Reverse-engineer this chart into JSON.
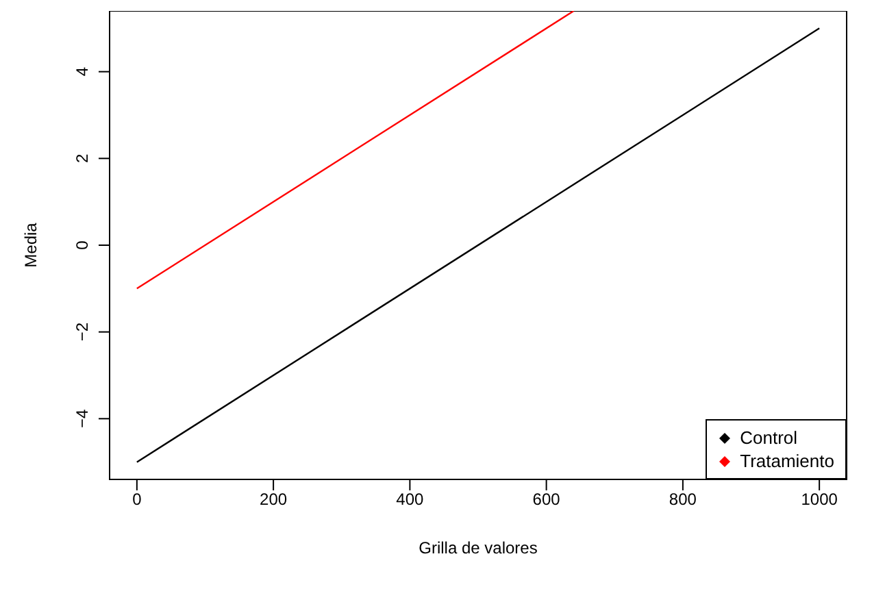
{
  "chart_data": {
    "type": "line",
    "xlabel": "Grilla de valores",
    "ylabel": "Media",
    "xlim": [
      -40,
      1040
    ],
    "ylim": [
      -5.4,
      5.4
    ],
    "xticks": [
      0,
      200,
      400,
      600,
      800,
      1000
    ],
    "yticks": [
      {
        "value": -4,
        "label": "−4"
      },
      {
        "value": -2,
        "label": "−2"
      },
      0,
      2,
      4
    ],
    "legend": "bottom right",
    "grid": false,
    "series": [
      {
        "name": "Control",
        "color": "#000000",
        "x": [
          0,
          1000
        ],
        "values": [
          -5,
          5
        ]
      },
      {
        "name": "Tratamiento",
        "color": "#ff0000",
        "x": [
          0,
          640
        ],
        "values": [
          -1,
          5.4
        ]
      }
    ]
  }
}
